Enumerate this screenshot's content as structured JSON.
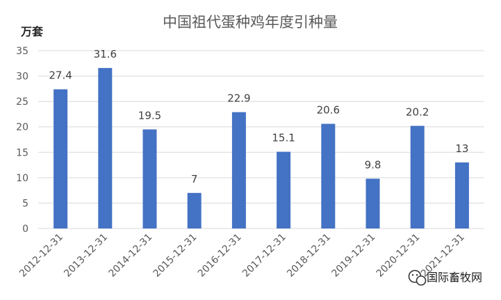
{
  "chart_data": {
    "type": "bar",
    "title": "中国祖代蛋种鸡年度引种量",
    "ylabel": "万套",
    "xlabel": "",
    "categories": [
      "2012-12-31",
      "2013-12-31",
      "2014-12-31",
      "2015-12-31",
      "2016-12-31",
      "2017-12-31",
      "2018-12-31",
      "2019-12-31",
      "2020-12-31",
      "2021-12-31"
    ],
    "values": [
      27.4,
      31.6,
      19.5,
      7,
      22.9,
      15.1,
      20.6,
      9.8,
      20.2,
      13
    ],
    "data_labels": [
      "27.4",
      "31.6",
      "19.5",
      "7",
      "22.9",
      "15.1",
      "20.6",
      "9.8",
      "20.2",
      "13"
    ],
    "ylim": [
      0,
      35
    ],
    "yticks": [
      0,
      5,
      10,
      15,
      20,
      25,
      30,
      35
    ],
    "grid": true,
    "legend": "none",
    "bar_color": "#4472c4"
  },
  "watermark": {
    "text": "国际畜牧网",
    "icon": "wechat-icon"
  }
}
